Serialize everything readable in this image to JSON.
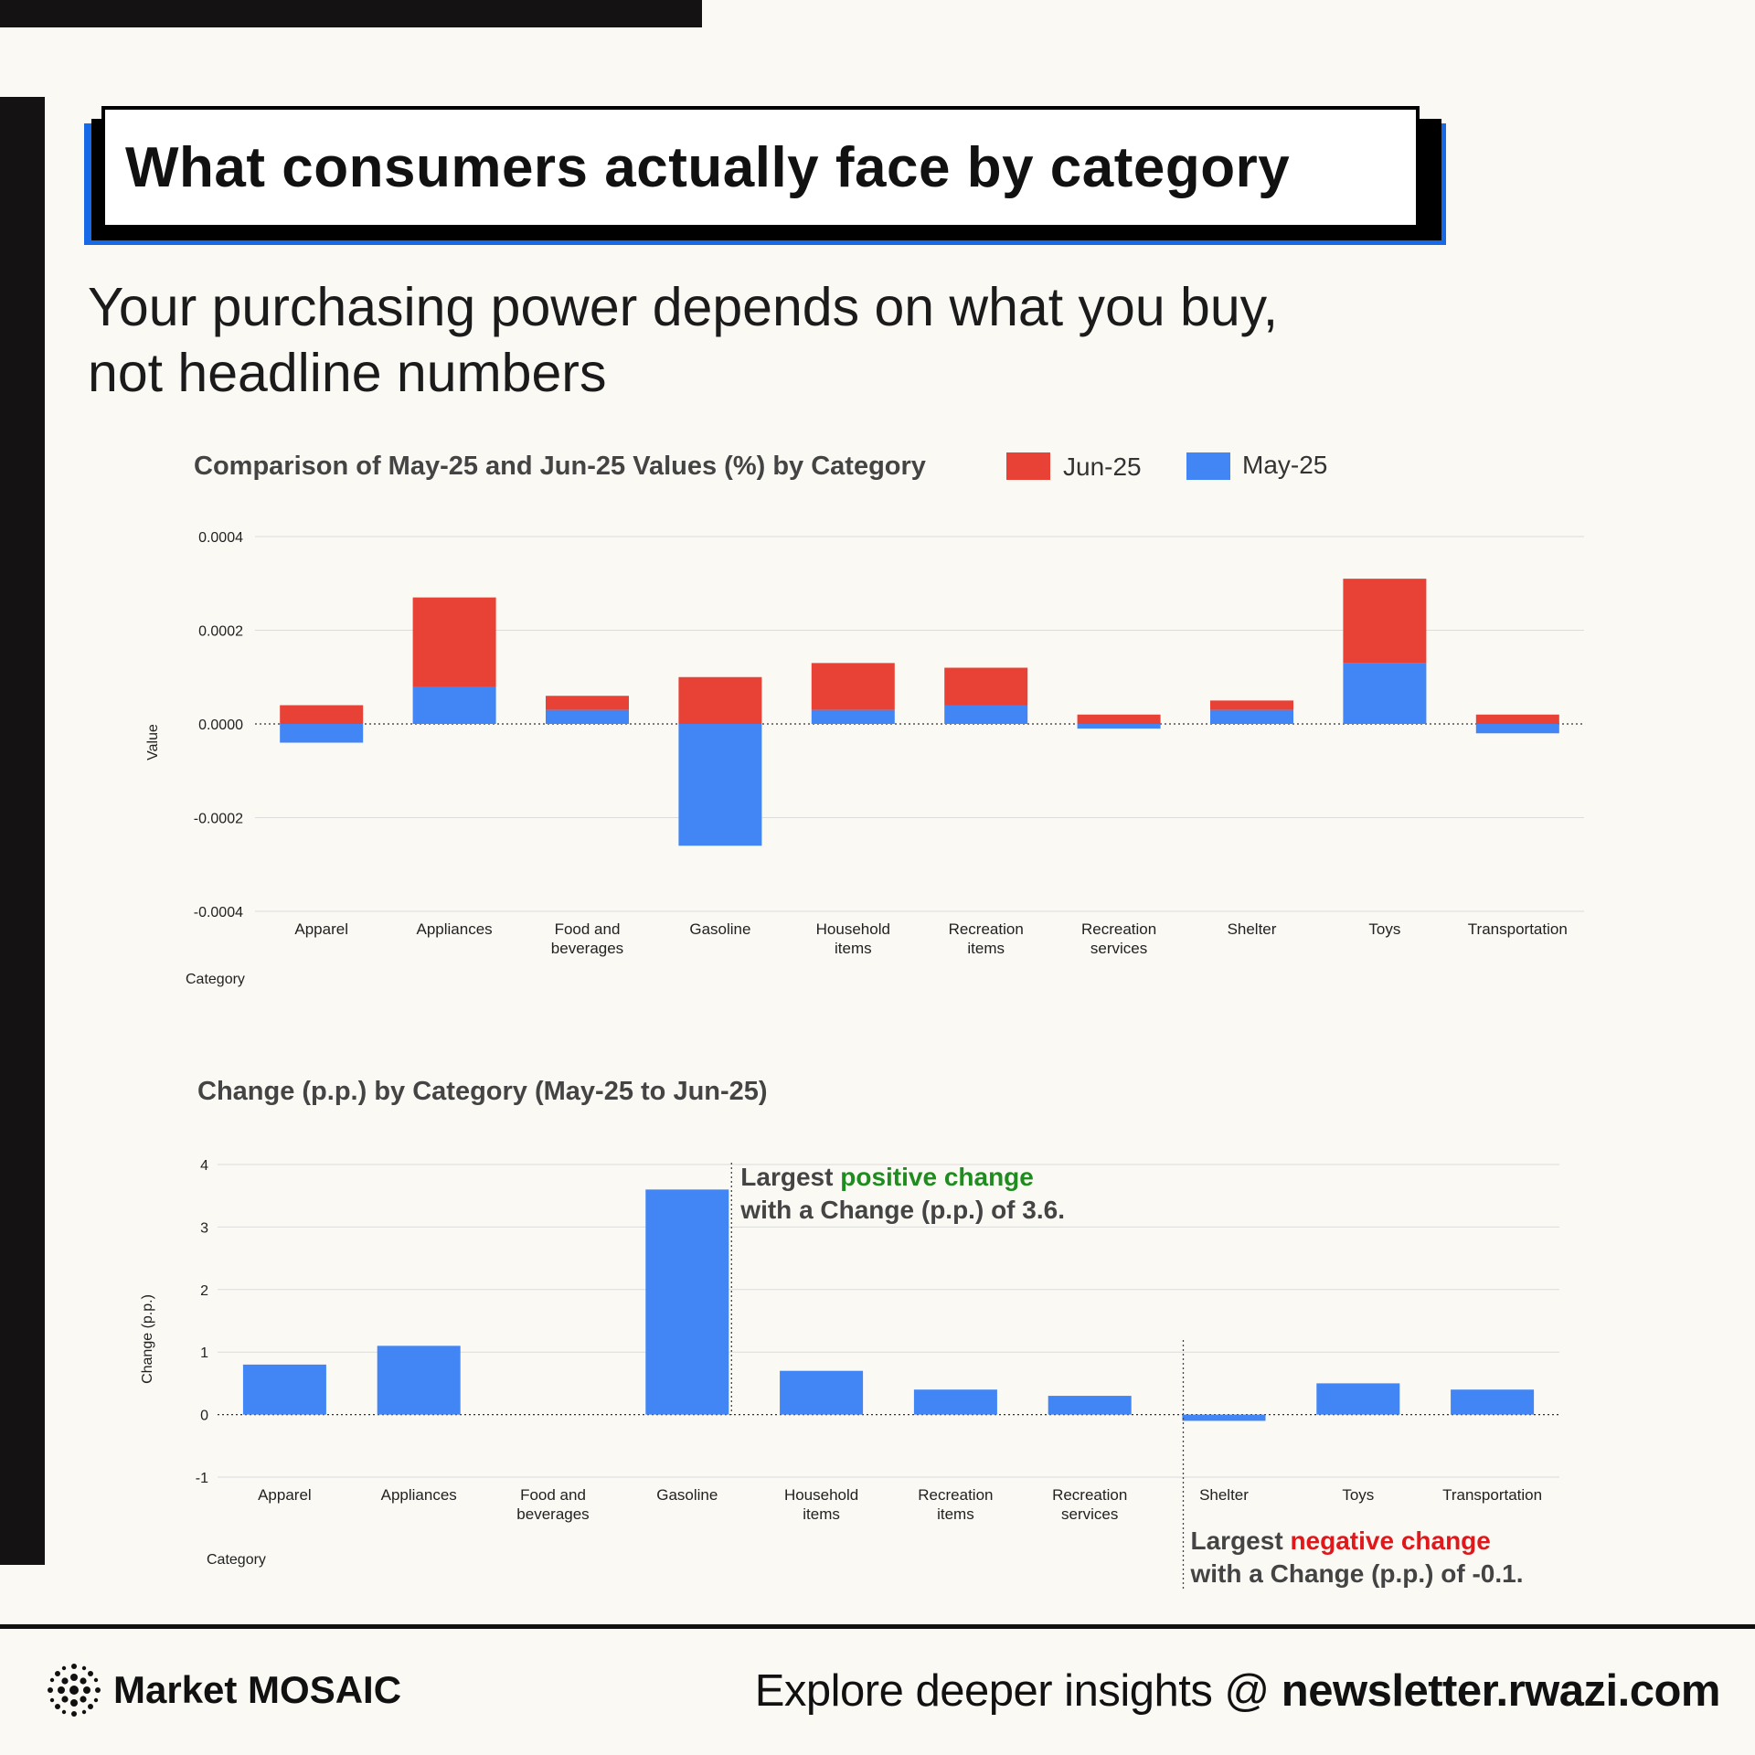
{
  "header": {
    "title": "What consumers actually face by category",
    "subtitle_line1": "Your purchasing power depends on what you buy,",
    "subtitle_line2": "not headline numbers"
  },
  "colors": {
    "jun": "#e84236",
    "may": "#4285f4",
    "positive": "#1e8c1e",
    "negative": "#e0181b"
  },
  "chart_data": [
    {
      "type": "bar",
      "stacked": true,
      "title": "Comparison of May-25 and Jun-25 Values (%) by Category",
      "xlabel": "Category",
      "ylabel": "Value",
      "ylim": [
        -0.0004,
        0.0004
      ],
      "yticks": [
        "0.0004",
        "0.0002",
        "0.0000",
        "-0.0002",
        "-0.0004"
      ],
      "ytick_values": [
        0.0004,
        0.0002,
        0,
        -0.0002,
        -0.0004
      ],
      "categories": [
        [
          "Apparel"
        ],
        [
          "Appliances"
        ],
        [
          "Food and",
          "beverages"
        ],
        [
          "Gasoline"
        ],
        [
          "Household",
          "items"
        ],
        [
          "Recreation",
          "items"
        ],
        [
          "Recreation",
          "services"
        ],
        [
          "Shelter"
        ],
        [
          "Toys"
        ],
        [
          "Transportation"
        ]
      ],
      "series": [
        {
          "name": "May-25",
          "values": [
            -4e-05,
            8e-05,
            3e-05,
            -0.00026,
            3e-05,
            4e-05,
            -1e-05,
            3e-05,
            0.00013,
            -2e-05
          ]
        },
        {
          "name": "Jun-25",
          "values": [
            4e-05,
            0.00019,
            3e-05,
            0.0001,
            0.0001,
            8e-05,
            2e-05,
            2e-05,
            0.00018,
            2e-05
          ]
        }
      ],
      "legend": [
        "Jun-25",
        "May-25"
      ],
      "legend_position": "top-right"
    },
    {
      "type": "bar",
      "title": "Change (p.p.) by Category (May-25 to Jun-25)",
      "xlabel": "Category",
      "ylabel": "Change (p.p.)",
      "ylim": [
        -1,
        4
      ],
      "yticks": [
        "4",
        "3",
        "2",
        "1",
        "0",
        "-1"
      ],
      "ytick_values": [
        4,
        3,
        2,
        1,
        0,
        -1
      ],
      "categories": [
        [
          "Apparel"
        ],
        [
          "Appliances"
        ],
        [
          "Food and",
          "beverages"
        ],
        [
          "Gasoline"
        ],
        [
          "Household",
          "items"
        ],
        [
          "Recreation",
          "items"
        ],
        [
          "Recreation",
          "services"
        ],
        [
          "Shelter"
        ],
        [
          "Toys"
        ],
        [
          "Transportation"
        ]
      ],
      "values": [
        0.8,
        1.1,
        0,
        3.6,
        0.7,
        0.4,
        0.3,
        -0.1,
        0.5,
        0.4
      ],
      "annotations": {
        "positive": {
          "pre": "Largest ",
          "highlight": "positive change",
          "line2": "with a Change (p.p.) of 3.6."
        },
        "negative": {
          "pre": "Largest ",
          "highlight": "negative change",
          "line2": "with a Change (p.p.) of -0.1."
        }
      }
    }
  ],
  "footer": {
    "brand": "Market MOSAIC",
    "cta_prefix": "Explore deeper insights @ ",
    "cta_link": "newsletter.rwazi.com"
  }
}
